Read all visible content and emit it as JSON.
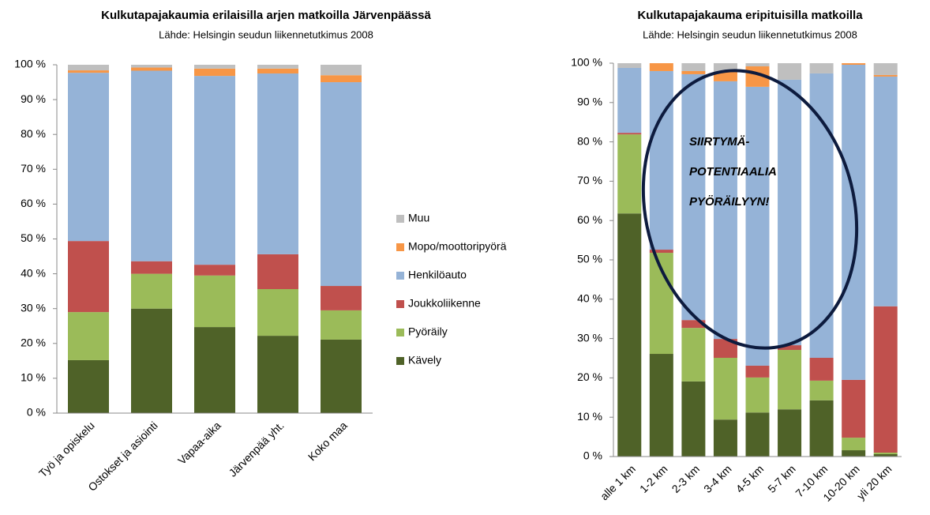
{
  "chart_data": [
    {
      "type": "stacked_bar",
      "title": "Kulkutapajakaumia erilaisilla arjen matkoilla Järvenpäässä",
      "subtitle": "Lähde: Helsingin seudun liikennetutkimus 2008",
      "categories": [
        "Työ ja opiskelu",
        "Ostokset ja asiointi",
        "Vapaa-aika",
        "Järvenpää yht.",
        "Koko maa"
      ],
      "series": [
        {
          "name": "Kävely",
          "color": "#4f6228",
          "values": [
            15.2,
            30,
            24.7,
            22.2,
            21.1
          ]
        },
        {
          "name": "Pyöräily",
          "color": "#9bbb59",
          "values": [
            13.8,
            10,
            14.8,
            13.4,
            8.4
          ]
        },
        {
          "name": "Joukkoliikenne",
          "color": "#c0504d",
          "values": [
            20.4,
            3.6,
            3.1,
            10,
            7
          ]
        },
        {
          "name": "Henkilöauto",
          "color": "#95b3d7",
          "values": [
            48.3,
            54.7,
            54.2,
            51.9,
            58.5
          ]
        },
        {
          "name": "Mopo/moottoripyörä",
          "color": "#f79646",
          "values": [
            0.7,
            0.9,
            2.1,
            1.4,
            2
          ]
        },
        {
          "name": "Muu",
          "color": "#bfbfbf",
          "values": [
            1.6,
            0.8,
            1.1,
            1.1,
            3
          ]
        }
      ],
      "ylim": [
        0,
        100
      ],
      "yticks": [
        {
          "value": 0,
          "label": "0 %"
        },
        {
          "value": 10,
          "label": "10 %"
        },
        {
          "value": 20,
          "label": "20 %"
        },
        {
          "value": 30,
          "label": "30 %"
        },
        {
          "value": 40,
          "label": "40 %"
        },
        {
          "value": 50,
          "label": "50 %"
        },
        {
          "value": 60,
          "label": "60 %"
        },
        {
          "value": 70,
          "label": "70 %"
        },
        {
          "value": 80,
          "label": "80 %"
        },
        {
          "value": 90,
          "label": "90 %"
        },
        {
          "value": 100,
          "label": "100 %"
        }
      ],
      "legend": "right"
    },
    {
      "type": "stacked_bar",
      "title": "Kulkutapajakauma eripituisilla matkoilla",
      "subtitle": "Lähde: Helsingin seudun liikennetutkimus 2008",
      "categories": [
        "alle 1 km",
        "1-2 km",
        "2-3 km",
        "3-4 km",
        "4-5 km",
        "5-7 km",
        "7-10 km",
        "10-20 km",
        "yli 20 km"
      ],
      "series": [
        {
          "color": "#4f6228",
          "values": [
            61.8,
            26.1,
            19.1,
            9.4,
            11.2,
            12,
            14.3,
            1.6,
            0.6
          ]
        },
        {
          "color": "#9bbb59",
          "values": [
            20.1,
            25.7,
            13.6,
            15.7,
            8.9,
            15.1,
            5,
            3.2,
            0.4
          ]
        },
        {
          "color": "#c0504d",
          "values": [
            0.4,
            0.8,
            2,
            4.8,
            3,
            1.2,
            5.8,
            14.7,
            37.2
          ]
        },
        {
          "color": "#95b3d7",
          "values": [
            16.5,
            45.4,
            62.5,
            65.5,
            70.9,
            67.5,
            72.3,
            80.1,
            58.4
          ]
        },
        {
          "color": "#f79646",
          "values": [
            0,
            2,
            0.8,
            2.4,
            5.2,
            0,
            0,
            0.4,
            0.4
          ]
        },
        {
          "color": "#bfbfbf",
          "values": [
            1.2,
            0,
            2,
            2.2,
            0.8,
            4.2,
            2.6,
            0,
            3
          ]
        }
      ],
      "ylim": [
        0,
        100
      ],
      "yticks": [
        {
          "value": 0,
          "label": "0 %"
        },
        {
          "value": 10,
          "label": "10 %"
        },
        {
          "value": 20,
          "label": "20 %"
        },
        {
          "value": 30,
          "label": "30 %"
        },
        {
          "value": 40,
          "label": "40 %"
        },
        {
          "value": 50,
          "label": "50 %"
        },
        {
          "value": 60,
          "label": "60 %"
        },
        {
          "value": 70,
          "label": "70 %"
        },
        {
          "value": 80,
          "label": "80 %"
        },
        {
          "value": 90,
          "label": "90 %"
        },
        {
          "value": 100,
          "label": "100 %"
        }
      ],
      "annotation": [
        "SIIRTYMÄ-",
        "POTENTIAALIA",
        "PYÖRÄILYYN!"
      ]
    }
  ]
}
